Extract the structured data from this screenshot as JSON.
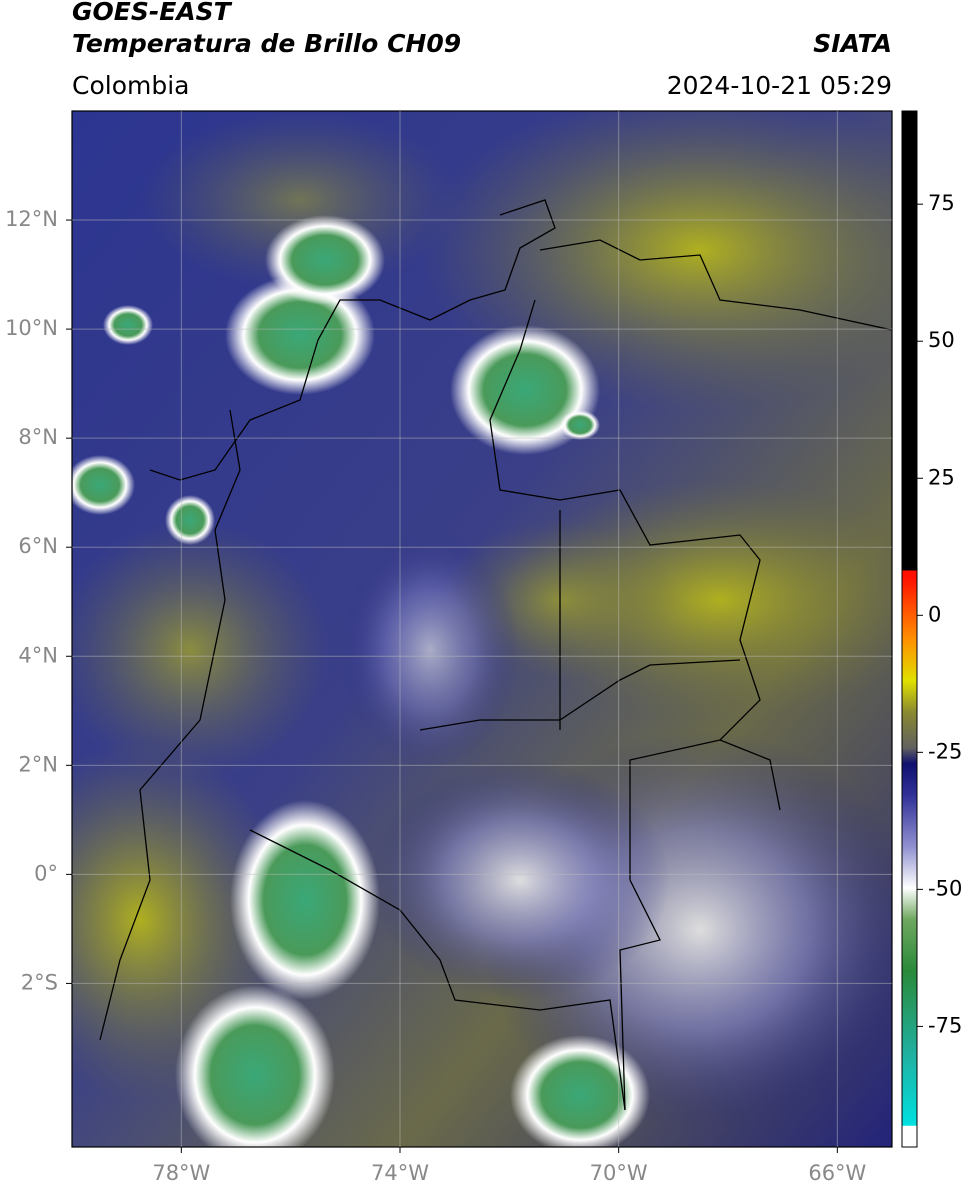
{
  "header": {
    "satellite": "GOES-EAST",
    "product": "Temperatura de Brillo CH09",
    "source": "SIATA",
    "region": "Colombia",
    "datetime": "2024-10-21 05:29"
  },
  "map": {
    "xlim": [
      -80,
      -65
    ],
    "ylim": [
      -5,
      14
    ],
    "xticks": [
      {
        "value": -78,
        "label": "78°W"
      },
      {
        "value": -74,
        "label": "74°W"
      },
      {
        "value": -70,
        "label": "70°W"
      },
      {
        "value": -66,
        "label": "66°W"
      }
    ],
    "yticks": [
      {
        "value": 12,
        "label": "12°N"
      },
      {
        "value": 10,
        "label": "10°N"
      },
      {
        "value": 8,
        "label": "8°N"
      },
      {
        "value": 6,
        "label": "6°N"
      },
      {
        "value": 4,
        "label": "4°N"
      },
      {
        "value": 2,
        "label": "2°N"
      },
      {
        "value": 0,
        "label": "0°"
      },
      {
        "value": -2,
        "label": "2°S"
      }
    ],
    "grid": true
  },
  "colorbar": {
    "lim": [
      -97,
      92
    ],
    "ticks": [
      75,
      50,
      25,
      0,
      -25,
      -50,
      -75
    ]
  }
}
